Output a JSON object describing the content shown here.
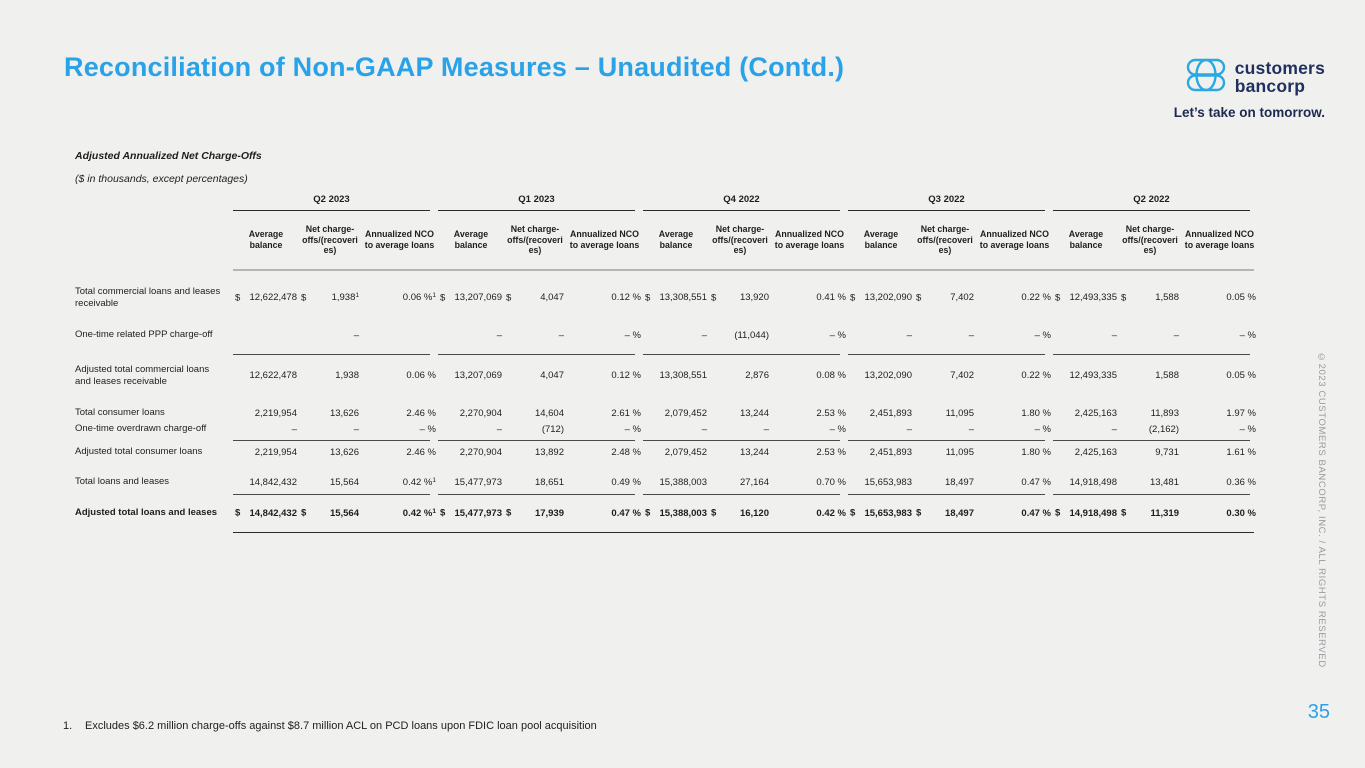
{
  "header": {
    "title": "Reconciliation of Non-GAAP Measures – Unaudited (Contd.)"
  },
  "logo": {
    "icon": "customers-bancorp-logo-icon",
    "line1": "customers",
    "line2": "bancorp",
    "tagline": "Let’s take on tomorrow.",
    "navy": "#20305f",
    "blue": "#2aa8e2"
  },
  "table": {
    "section_title": "Adjusted Annualized Net Charge-Offs",
    "units_note": "($ in thousands, except percentages)",
    "quarters": [
      "Q2 2023",
      "Q1 2023",
      "Q4 2022",
      "Q3 2022",
      "Q2 2022"
    ],
    "columns": [
      "Average balance",
      "Net charge-offs/(recoveries)",
      "Annualized NCO to average loans"
    ],
    "rows": [
      {
        "label": "Total commercial loans and leases receivable",
        "bold": false,
        "dollar": true,
        "rule_after": null,
        "cells": [
          [
            "12,622,478",
            "1,938^1",
            "0.06 %^1"
          ],
          [
            "13,207,069",
            "4,047",
            "0.12 %"
          ],
          [
            "13,308,551",
            "13,920",
            "0.41 %"
          ],
          [
            "13,202,090",
            "7,402",
            "0.22 %"
          ],
          [
            "12,493,335",
            "1,588",
            "0.05 %"
          ]
        ]
      },
      {
        "label": "One-time related PPP charge-off",
        "bold": false,
        "dollar": false,
        "rule_after": "segments",
        "cells": [
          [
            "",
            "–",
            ""
          ],
          [
            "–",
            "–",
            "– %"
          ],
          [
            "–",
            "(11,044)",
            "– %"
          ],
          [
            "–",
            "–",
            "– %"
          ],
          [
            "–",
            "–",
            "– %"
          ]
        ]
      },
      {
        "label": "Adjusted total commercial loans and leases receivable",
        "bold": false,
        "dollar": false,
        "rule_after": null,
        "cells": [
          [
            "12,622,478",
            "1,938",
            "0.06 %"
          ],
          [
            "13,207,069",
            "4,047",
            "0.12 %"
          ],
          [
            "13,308,551",
            "2,876",
            "0.08 %"
          ],
          [
            "13,202,090",
            "7,402",
            "0.22 %"
          ],
          [
            "12,493,335",
            "1,588",
            "0.05 %"
          ]
        ]
      },
      {
        "label": "Total consumer loans",
        "bold": false,
        "dollar": false,
        "rule_after": null,
        "cells": [
          [
            "2,219,954",
            "13,626",
            "2.46 %"
          ],
          [
            "2,270,904",
            "14,604",
            "2.61 %"
          ],
          [
            "2,079,452",
            "13,244",
            "2.53 %"
          ],
          [
            "2,451,893",
            "11,095",
            "1.80 %"
          ],
          [
            "2,425,163",
            "11,893",
            "1.97 %"
          ]
        ]
      },
      {
        "label": "One-time overdrawn charge-off",
        "bold": false,
        "dollar": false,
        "rule_after": "segments",
        "cells": [
          [
            "–",
            "–",
            "– %"
          ],
          [
            "–",
            "(712)",
            "– %"
          ],
          [
            "–",
            "–",
            "– %"
          ],
          [
            "–",
            "–",
            "– %"
          ],
          [
            "–",
            "(2,162)",
            "– %"
          ]
        ]
      },
      {
        "label": "Adjusted total consumer loans",
        "bold": false,
        "dollar": false,
        "rule_after": null,
        "cells": [
          [
            "2,219,954",
            "13,626",
            "2.46 %"
          ],
          [
            "2,270,904",
            "13,892",
            "2.48 %"
          ],
          [
            "2,079,452",
            "13,244",
            "2.53 %"
          ],
          [
            "2,451,893",
            "11,095",
            "1.80 %"
          ],
          [
            "2,425,163",
            "9,731",
            "1.61 %"
          ]
        ]
      },
      {
        "label": "Total loans and leases",
        "bold": false,
        "dollar": false,
        "rule_after": "segments",
        "cells": [
          [
            "14,842,432",
            "15,564",
            "0.42 %^1"
          ],
          [
            "15,477,973",
            "18,651",
            "0.49 %"
          ],
          [
            "15,388,003",
            "27,164",
            "0.70 %"
          ],
          [
            "15,653,983",
            "18,497",
            "0.47 %"
          ],
          [
            "14,918,498",
            "13,481",
            "0.36 %"
          ]
        ]
      },
      {
        "label": "Adjusted total loans and leases",
        "bold": true,
        "dollar": true,
        "rule_after": "full",
        "cells": [
          [
            "14,842,432",
            "15,564",
            "0.42 %^1"
          ],
          [
            "15,477,973",
            "17,939",
            "0.47 %"
          ],
          [
            "15,388,003",
            "16,120",
            "0.42 %"
          ],
          [
            "15,653,983",
            "18,497",
            "0.47 %"
          ],
          [
            "14,918,498",
            "11,319",
            "0.30 %"
          ]
        ]
      }
    ]
  },
  "footnote": {
    "number": "1.",
    "text": "Excludes $6.2 million charge-offs against $8.7 million ACL on PCD loans upon FDIC loan pool acquisition"
  },
  "page_number": "35",
  "copyright": "©2023 CUSTOMERS BANCORP, INC. / ALL RIGHTS RESERVED",
  "colors": {
    "background": "#f0f0ee",
    "accent_blue": "#2aa2e8",
    "logo_navy": "#20305f",
    "logo_blue": "#2aa8e2",
    "table_text": "#1e1e1e",
    "muted_gray": "#9b9ba0"
  }
}
